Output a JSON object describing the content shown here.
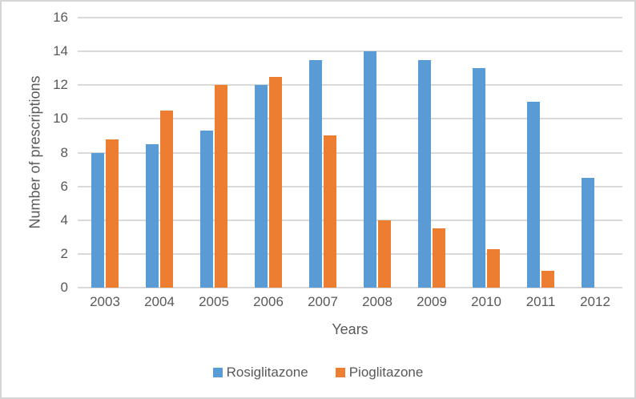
{
  "chart_data": {
    "type": "bar",
    "title": "",
    "xlabel": "Years",
    "ylabel": "Number of prescriptions",
    "categories": [
      "2003",
      "2004",
      "2005",
      "2006",
      "2007",
      "2008",
      "2009",
      "2010",
      "2011",
      "2012"
    ],
    "series": [
      {
        "name": "Rosiglitazone",
        "color": "#5b9bd5",
        "values": [
          8,
          8.5,
          9.3,
          12,
          13.5,
          14,
          13.5,
          13,
          11,
          6.5
        ]
      },
      {
        "name": "Pioglitazone",
        "color": "#ed7d31",
        "values": [
          8.8,
          10.5,
          12,
          12.5,
          9,
          4,
          3.5,
          2.3,
          1,
          null
        ]
      }
    ],
    "ylim": [
      0,
      16
    ],
    "ytick_step": 2,
    "grid": "horizontal",
    "legend_position": "bottom",
    "colors": {
      "gridline": "#d9d9d9",
      "axis_text": "#595959",
      "chart_border": "#d5d5d5",
      "background": "#ffffff"
    }
  }
}
